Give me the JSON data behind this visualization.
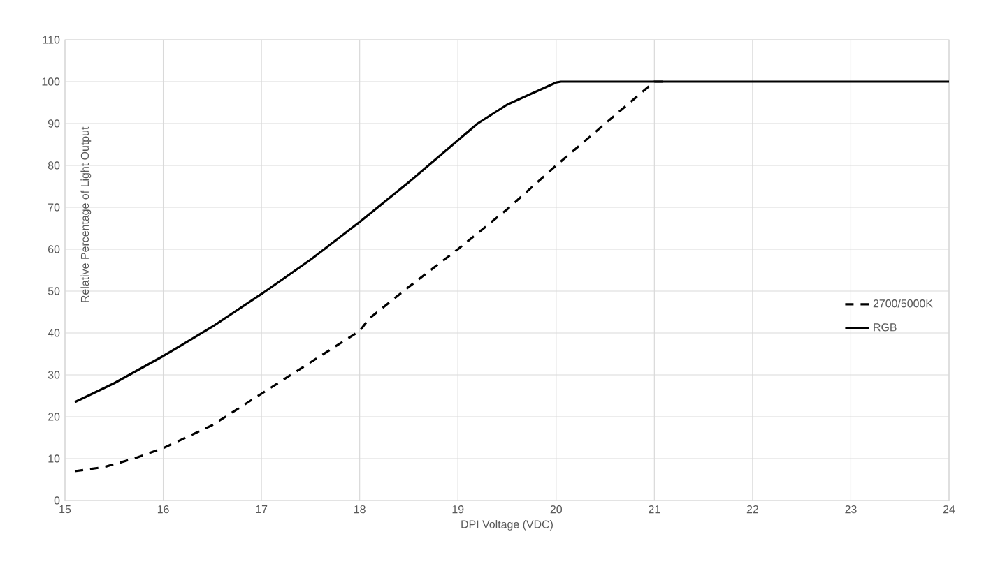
{
  "chart_data": {
    "type": "line",
    "xlabel": "DPI Voltage (VDC)",
    "ylabel": "Relative Percentage of Light Output",
    "xlim": [
      15,
      24
    ],
    "ylim": [
      0,
      110
    ],
    "xticks": [
      15,
      16,
      17,
      18,
      19,
      20,
      21,
      22,
      23,
      24
    ],
    "yticks": [
      0,
      10,
      20,
      30,
      40,
      50,
      60,
      70,
      80,
      90,
      100,
      110
    ],
    "grid": true,
    "legend": "right",
    "marker": "none",
    "series": [
      {
        "name": "2700/5000K",
        "color": "#000000",
        "line_style": "dashed",
        "x": [
          15.1,
          15.4,
          15.7,
          16,
          16.5,
          17,
          17.5,
          18,
          18.1,
          18.5,
          19,
          19.5,
          20,
          20.5,
          21,
          21.1
        ],
        "values": [
          7,
          8,
          10,
          12.5,
          18,
          25.5,
          33,
          40.5,
          43.5,
          51,
          60,
          69.5,
          80,
          90,
          100,
          100
        ]
      },
      {
        "name": "RGB",
        "color": "#000000",
        "line_style": "solid",
        "x": [
          15.1,
          15.5,
          16,
          16.5,
          17,
          17.5,
          18,
          18.5,
          19,
          19.2,
          19.5,
          20,
          20.05,
          24
        ],
        "values": [
          23.5,
          28,
          34.5,
          41.5,
          49.3,
          57.5,
          66.5,
          76,
          86,
          90,
          94.5,
          99.8,
          100,
          100
        ]
      }
    ]
  }
}
